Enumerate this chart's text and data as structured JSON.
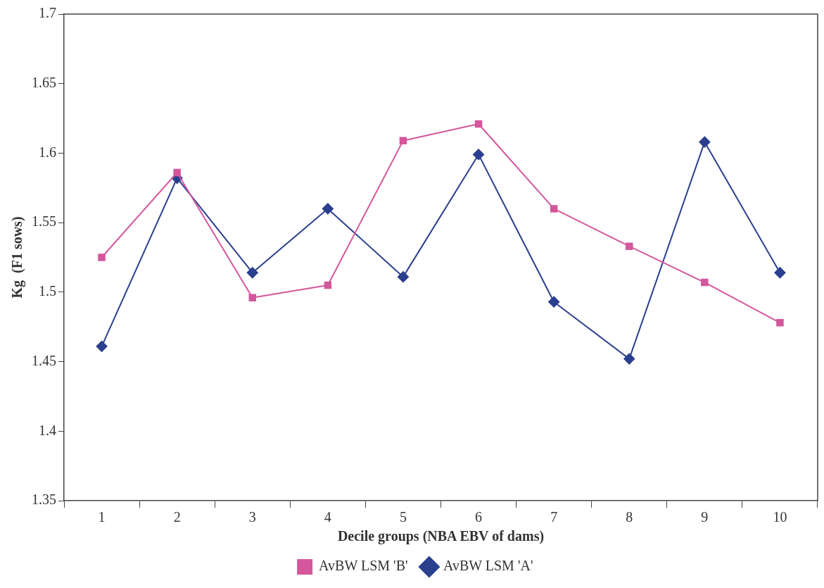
{
  "chart_data": {
    "type": "line",
    "xlabel": "Decile groups (NBA EBV of dams)",
    "ylabel": "Kg  (F1 sows)",
    "categories": [
      "1",
      "2",
      "3",
      "4",
      "5",
      "6",
      "7",
      "8",
      "9",
      "10"
    ],
    "series": [
      {
        "name": "AvBW LSM 'B'",
        "color": "#d4579c",
        "marker": "square",
        "values": [
          1.525,
          1.586,
          1.496,
          1.505,
          1.609,
          1.621,
          1.56,
          1.533,
          1.507,
          1.478
        ]
      },
      {
        "name": "AvBW LSM 'A'",
        "color": "#2b3f8f",
        "marker": "diamond",
        "values": [
          1.461,
          1.582,
          1.514,
          1.56,
          1.511,
          1.599,
          1.493,
          1.452,
          1.608,
          1.514
        ]
      }
    ],
    "ylim": [
      1.35,
      1.7
    ],
    "yticks": [
      1.35,
      1.4,
      1.45,
      1.5,
      1.55,
      1.6,
      1.65,
      1.7
    ],
    "grid": false,
    "legend": "bottom",
    "line_style": "solid"
  }
}
